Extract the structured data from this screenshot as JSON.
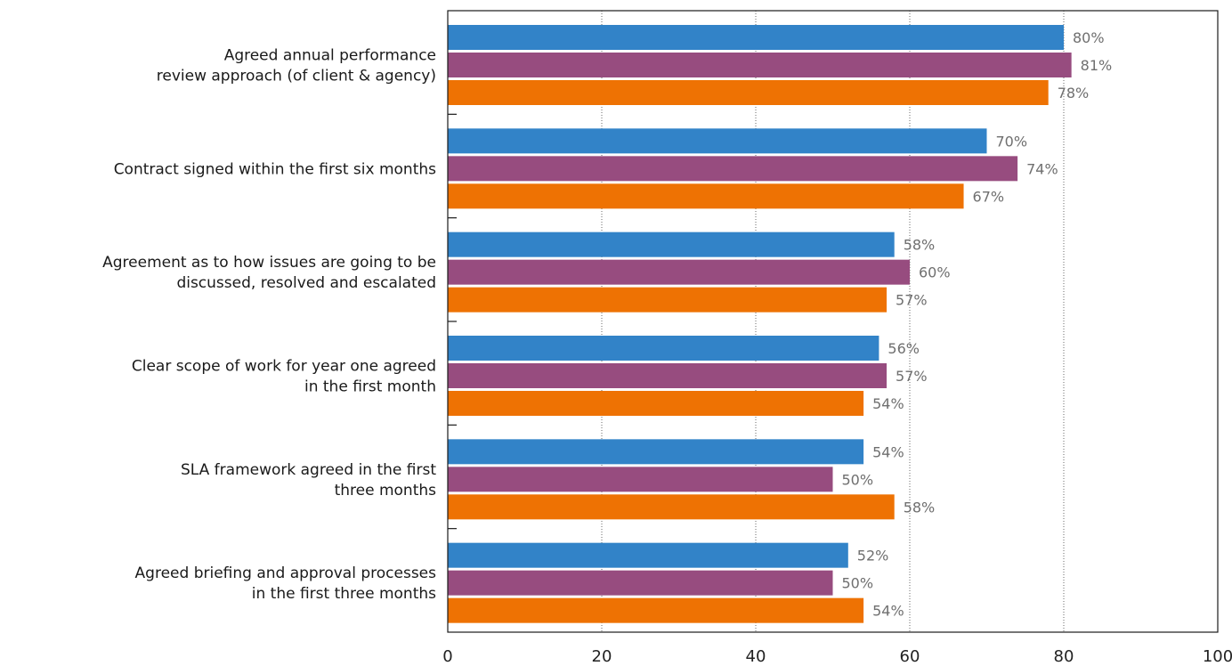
{
  "chart_data": {
    "type": "bar",
    "orientation": "horizontal",
    "categories": [
      [
        "Agreed annual performance",
        "review approach (of client & agency)"
      ],
      [
        "Contract signed within the first six months"
      ],
      [
        "Agreement as to how issues are going to be",
        "discussed, resolved and escalated"
      ],
      [
        "Clear scope of work for year one agreed",
        "in the first month"
      ],
      [
        "SLA framework agreed in the first",
        "three months"
      ],
      [
        "Agreed briefing and approval processes",
        "in the first three months"
      ]
    ],
    "series": [
      {
        "color": "#3283c8",
        "values": [
          80,
          70,
          58,
          56,
          54,
          52
        ],
        "labels": [
          "80%",
          "70%",
          "58%",
          "56%",
          "54%",
          "52%"
        ]
      },
      {
        "color": "#974c7f",
        "values": [
          81,
          74,
          60,
          57,
          50,
          50
        ],
        "labels": [
          "81%",
          "74%",
          "60%",
          "57%",
          "50%",
          "50%"
        ]
      },
      {
        "color": "#ee7203",
        "values": [
          78,
          67,
          57,
          54,
          58,
          54
        ],
        "labels": [
          "78%",
          "67%",
          "57%",
          "54%",
          "58%",
          "54%"
        ]
      }
    ],
    "xlim": [
      0,
      100
    ],
    "xticks": [
      "0",
      "20",
      "40",
      "60",
      "80",
      "100"
    ],
    "xtick_values": [
      0,
      20,
      40,
      60,
      80,
      100
    ],
    "grid": "vertical dotted",
    "legend": "none"
  }
}
